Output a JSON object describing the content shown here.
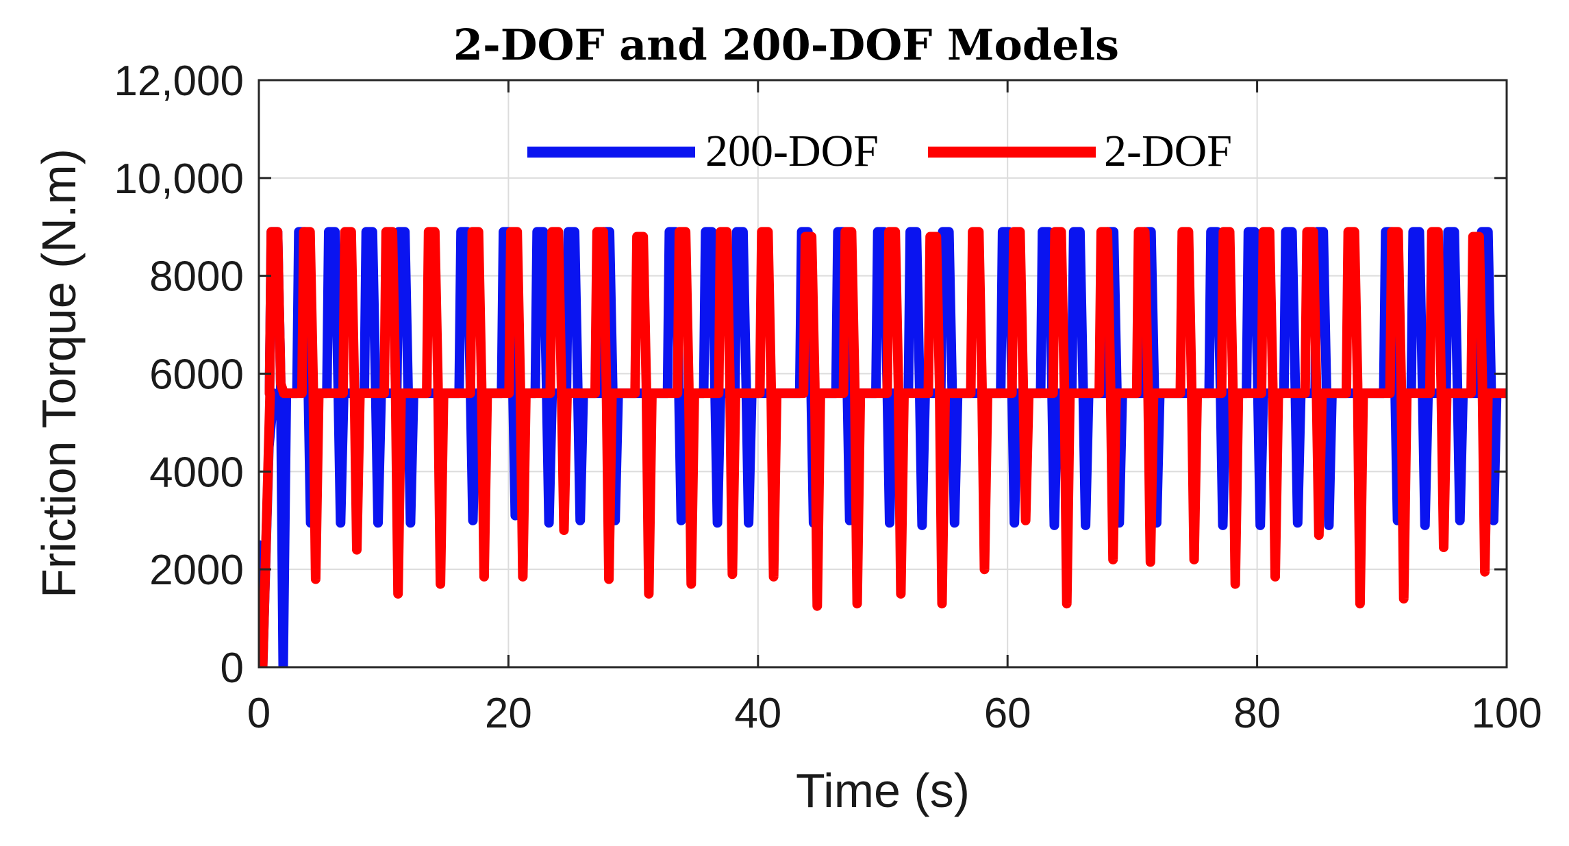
{
  "chart_data": {
    "type": "line",
    "title": "2-DOF and 200-DOF Models",
    "xlabel": "Time (s)",
    "ylabel": "Friction Torque (N.m)",
    "xlim": [
      0,
      100
    ],
    "ylim": [
      0,
      12000
    ],
    "xticks": [
      0,
      20,
      40,
      60,
      80,
      100
    ],
    "xtick_labels": [
      "0",
      "20",
      "40",
      "60",
      "80",
      "100"
    ],
    "yticks": [
      0,
      2000,
      4000,
      6000,
      8000,
      10000,
      12000
    ],
    "ytick_labels": [
      "0",
      "2000",
      "4000",
      "6000",
      "8000",
      "10,000",
      "12,000"
    ],
    "grid": true,
    "legend_position": "top-center",
    "series": [
      {
        "name": "200-DOF",
        "color": "#0a14f0",
        "baseline": 5600,
        "start": [
          [
            0,
            2500
          ],
          [
            0.3,
            0
          ],
          [
            0.8,
            4500
          ],
          [
            1.2,
            5600
          ]
        ],
        "events": [
          {
            "t": 1.0,
            "peak": 8900,
            "low": 0
          },
          {
            "t": 3.2,
            "peak": 8900,
            "low": 2950
          },
          {
            "t": 5.6,
            "peak": 8900,
            "low": 2950
          },
          {
            "t": 8.6,
            "peak": 8900,
            "low": 2950
          },
          {
            "t": 11.2,
            "peak": 8900,
            "low": 2950
          },
          {
            "t": 16.2,
            "peak": 8900,
            "low": 3000
          },
          {
            "t": 19.6,
            "peak": 8900,
            "low": 3100
          },
          {
            "t": 22.3,
            "peak": 8900,
            "low": 2950
          },
          {
            "t": 24.8,
            "peak": 8900,
            "low": 3000
          },
          {
            "t": 27.6,
            "peak": 8900,
            "low": 3000
          },
          {
            "t": 32.9,
            "peak": 8900,
            "low": 3000
          },
          {
            "t": 35.8,
            "peak": 8900,
            "low": 2950
          },
          {
            "t": 38.3,
            "peak": 8900,
            "low": 2950
          },
          {
            "t": 43.5,
            "peak": 8900,
            "low": 2950
          },
          {
            "t": 46.4,
            "peak": 8900,
            "low": 3000
          },
          {
            "t": 49.6,
            "peak": 8900,
            "low": 2950
          },
          {
            "t": 52.2,
            "peak": 8900,
            "low": 2900
          },
          {
            "t": 54.8,
            "peak": 8900,
            "low": 2950
          },
          {
            "t": 59.6,
            "peak": 8900,
            "low": 2950
          },
          {
            "t": 62.8,
            "peak": 8900,
            "low": 2900
          },
          {
            "t": 65.3,
            "peak": 8900,
            "low": 2900
          },
          {
            "t": 68.0,
            "peak": 8900,
            "low": 2950
          },
          {
            "t": 71.0,
            "peak": 8900,
            "low": 2950
          },
          {
            "t": 76.3,
            "peak": 8900,
            "low": 2900
          },
          {
            "t": 79.3,
            "peak": 8900,
            "low": 2900
          },
          {
            "t": 82.3,
            "peak": 8900,
            "low": 2950
          },
          {
            "t": 84.8,
            "peak": 8900,
            "low": 2900
          },
          {
            "t": 90.3,
            "peak": 8900,
            "low": 3000
          },
          {
            "t": 92.5,
            "peak": 8900,
            "low": 2900
          },
          {
            "t": 95.3,
            "peak": 8900,
            "low": 3000
          },
          {
            "t": 98.0,
            "peak": 8900,
            "low": 3000
          }
        ]
      },
      {
        "name": "2-DOF",
        "color": "#ff0000",
        "baseline": 5600,
        "start": [
          [
            0,
            0
          ],
          [
            0.3,
            0
          ],
          [
            0.9,
            5600
          ]
        ],
        "events": [
          {
            "t": 1.0,
            "peak": 8900,
            "low": 5600
          },
          {
            "t": 3.6,
            "peak": 8900,
            "low": 1800
          },
          {
            "t": 6.9,
            "peak": 8900,
            "low": 2400
          },
          {
            "t": 10.2,
            "peak": 8900,
            "low": 1500
          },
          {
            "t": 13.6,
            "peak": 8900,
            "low": 1700
          },
          {
            "t": 17.1,
            "peak": 8900,
            "low": 1850
          },
          {
            "t": 20.2,
            "peak": 8900,
            "low": 1850
          },
          {
            "t": 23.5,
            "peak": 8900,
            "low": 2800
          },
          {
            "t": 27.1,
            "peak": 8900,
            "low": 1800
          },
          {
            "t": 30.3,
            "peak": 8800,
            "low": 1500
          },
          {
            "t": 33.7,
            "peak": 8900,
            "low": 1700
          },
          {
            "t": 37.0,
            "peak": 8900,
            "low": 1900
          },
          {
            "t": 40.3,
            "peak": 8900,
            "low": 1850
          },
          {
            "t": 43.8,
            "peak": 8800,
            "low": 1250
          },
          {
            "t": 47.0,
            "peak": 8900,
            "low": 1300
          },
          {
            "t": 50.5,
            "peak": 8900,
            "low": 1500
          },
          {
            "t": 53.8,
            "peak": 8800,
            "low": 1300
          },
          {
            "t": 57.2,
            "peak": 8900,
            "low": 2000
          },
          {
            "t": 60.5,
            "peak": 8900,
            "low": 3000
          },
          {
            "t": 63.8,
            "peak": 8900,
            "low": 1300
          },
          {
            "t": 67.5,
            "peak": 8900,
            "low": 2200
          },
          {
            "t": 70.5,
            "peak": 8900,
            "low": 2150
          },
          {
            "t": 74.0,
            "peak": 8900,
            "low": 2200
          },
          {
            "t": 77.3,
            "peak": 8900,
            "low": 1700
          },
          {
            "t": 80.5,
            "peak": 8900,
            "low": 1850
          },
          {
            "t": 84.0,
            "peak": 8900,
            "low": 2700
          },
          {
            "t": 87.3,
            "peak": 8900,
            "low": 1300
          },
          {
            "t": 90.8,
            "peak": 8900,
            "low": 1400
          },
          {
            "t": 94.0,
            "peak": 8900,
            "low": 2450
          },
          {
            "t": 97.3,
            "peak": 8800,
            "low": 1950
          }
        ]
      }
    ]
  }
}
